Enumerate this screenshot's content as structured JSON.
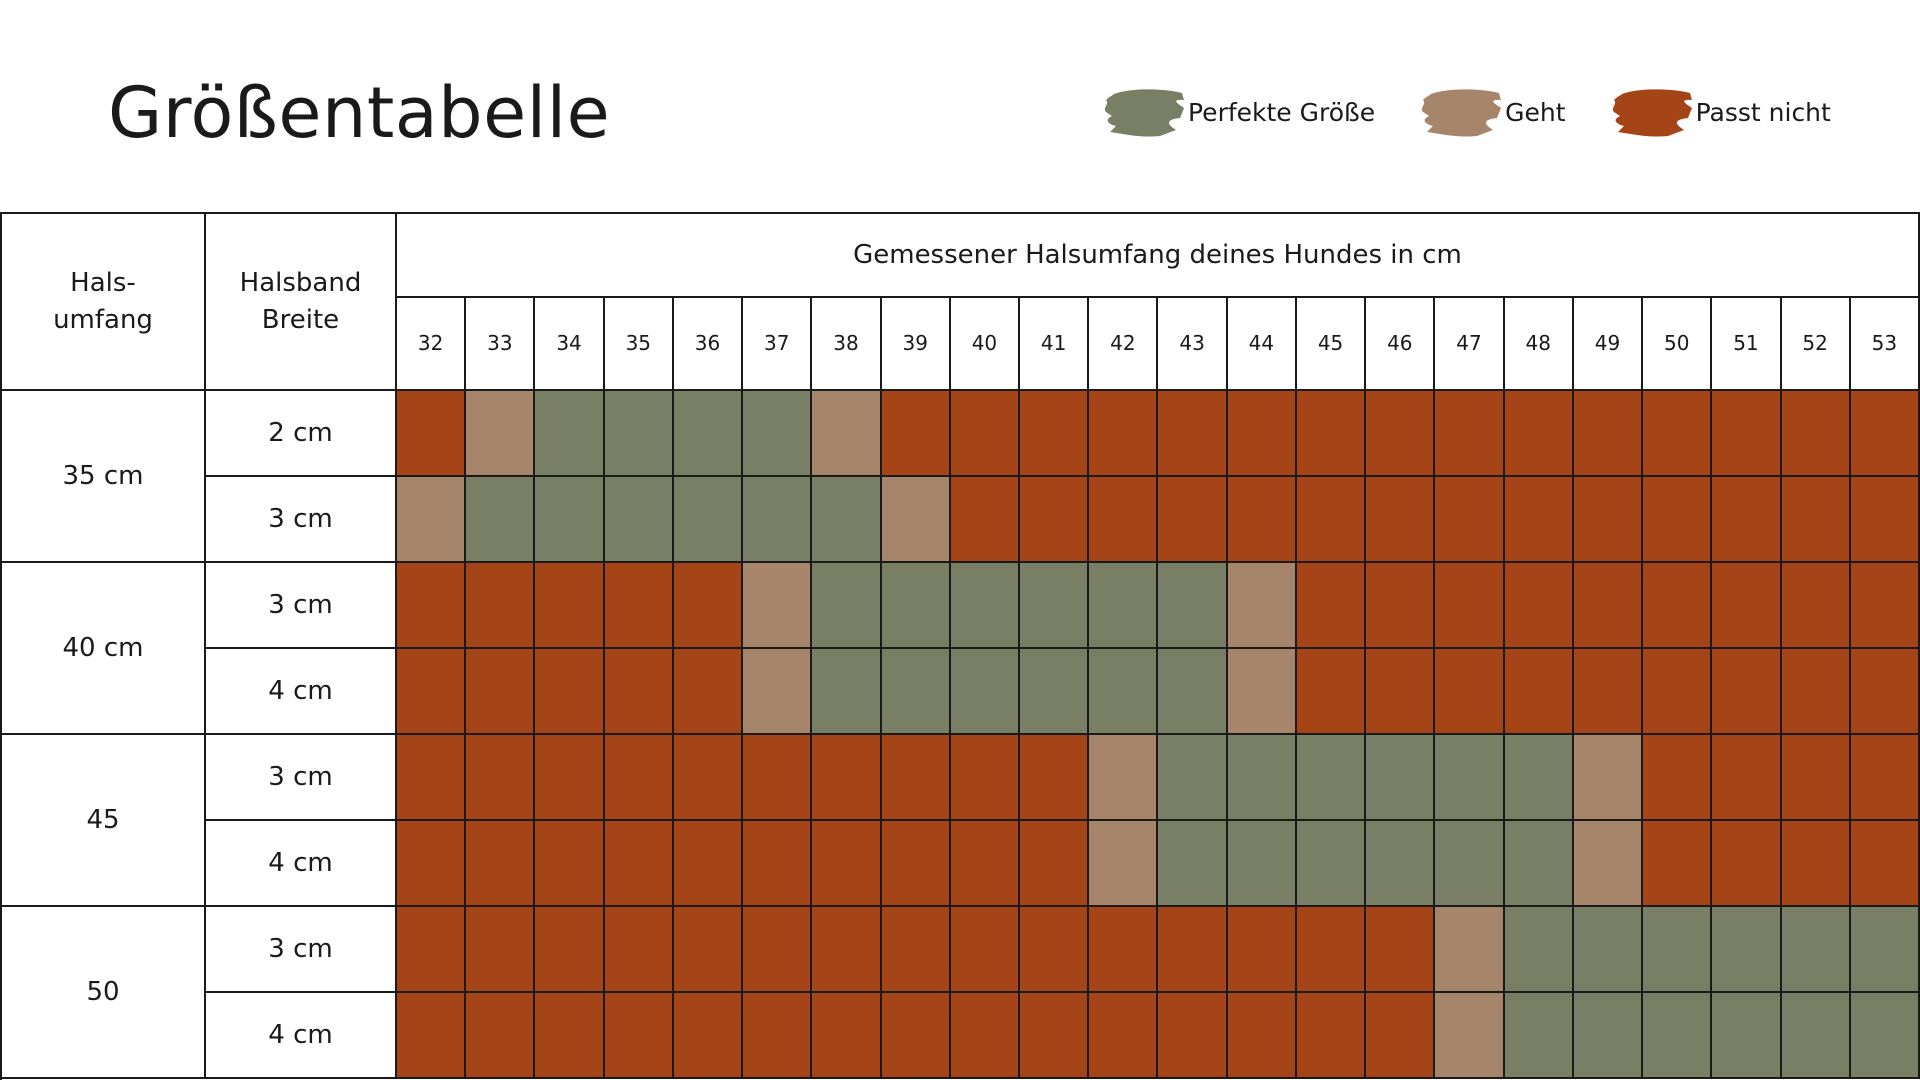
{
  "title": "Größentabelle",
  "legend": [
    {
      "key": "perfect",
      "label": "Perfekte Größe",
      "color": "#787f64"
    },
    {
      "key": "ok",
      "label": "Geht",
      "color": "#a6856a"
    },
    {
      "key": "no",
      "label": "Passt nicht",
      "color": "#a54417"
    }
  ],
  "table": {
    "col1_header": [
      "Hals-",
      "umfang"
    ],
    "col2_header": [
      "Halsband",
      "Breite"
    ],
    "span_header": "Gemessener Halsumfang deines Hundes in cm",
    "groups": [
      {
        "label": "35 cm",
        "widths": [
          "2 cm",
          "3 cm"
        ]
      },
      {
        "label": "40 cm",
        "widths": [
          "3 cm",
          "4 cm"
        ]
      },
      {
        "label": "45",
        "widths": [
          "3 cm",
          "4 cm"
        ]
      },
      {
        "label": "50",
        "widths": [
          "3 cm",
          "4 cm"
        ]
      }
    ]
  },
  "chart_data": {
    "type": "heatmap",
    "title": "Größentabelle",
    "xlabel": "Gemessener Halsumfang deines Hundes in cm",
    "x": [
      32,
      33,
      34,
      35,
      36,
      37,
      38,
      39,
      40,
      41,
      42,
      43,
      44,
      45,
      46,
      47,
      48,
      49,
      50,
      51,
      52,
      53
    ],
    "rows": [
      {
        "halsumfang": "35 cm",
        "breite": "2 cm",
        "values": [
          "no",
          "ok",
          "perfect",
          "perfect",
          "perfect",
          "perfect",
          "ok",
          "no",
          "no",
          "no",
          "no",
          "no",
          "no",
          "no",
          "no",
          "no",
          "no",
          "no",
          "no",
          "no",
          "no",
          "no"
        ]
      },
      {
        "halsumfang": "35 cm",
        "breite": "3 cm",
        "values": [
          "ok",
          "perfect",
          "perfect",
          "perfect",
          "perfect",
          "perfect",
          "perfect",
          "ok",
          "no",
          "no",
          "no",
          "no",
          "no",
          "no",
          "no",
          "no",
          "no",
          "no",
          "no",
          "no",
          "no",
          "no"
        ]
      },
      {
        "halsumfang": "40 cm",
        "breite": "3 cm",
        "values": [
          "no",
          "no",
          "no",
          "no",
          "no",
          "ok",
          "perfect",
          "perfect",
          "perfect",
          "perfect",
          "perfect",
          "perfect",
          "ok",
          "no",
          "no",
          "no",
          "no",
          "no",
          "no",
          "no",
          "no",
          "no"
        ]
      },
      {
        "halsumfang": "40 cm",
        "breite": "4 cm",
        "values": [
          "no",
          "no",
          "no",
          "no",
          "no",
          "ok",
          "perfect",
          "perfect",
          "perfect",
          "perfect",
          "perfect",
          "perfect",
          "ok",
          "no",
          "no",
          "no",
          "no",
          "no",
          "no",
          "no",
          "no",
          "no"
        ]
      },
      {
        "halsumfang": "45",
        "breite": "3 cm",
        "values": [
          "no",
          "no",
          "no",
          "no",
          "no",
          "no",
          "no",
          "no",
          "no",
          "no",
          "ok",
          "perfect",
          "perfect",
          "perfect",
          "perfect",
          "perfect",
          "perfect",
          "ok",
          "no",
          "no",
          "no",
          "no"
        ]
      },
      {
        "halsumfang": "45",
        "breite": "4 cm",
        "values": [
          "no",
          "no",
          "no",
          "no",
          "no",
          "no",
          "no",
          "no",
          "no",
          "no",
          "ok",
          "perfect",
          "perfect",
          "perfect",
          "perfect",
          "perfect",
          "perfect",
          "ok",
          "no",
          "no",
          "no",
          "no"
        ]
      },
      {
        "halsumfang": "50",
        "breite": "3 cm",
        "values": [
          "no",
          "no",
          "no",
          "no",
          "no",
          "no",
          "no",
          "no",
          "no",
          "no",
          "no",
          "no",
          "no",
          "no",
          "no",
          "ok",
          "perfect",
          "perfect",
          "perfect",
          "perfect",
          "perfect",
          "perfect"
        ]
      },
      {
        "halsumfang": "50",
        "breite": "4 cm",
        "values": [
          "no",
          "no",
          "no",
          "no",
          "no",
          "no",
          "no",
          "no",
          "no",
          "no",
          "no",
          "no",
          "no",
          "no",
          "no",
          "ok",
          "perfect",
          "perfect",
          "perfect",
          "perfect",
          "perfect",
          "perfect"
        ]
      }
    ],
    "legend_placement": "top-right"
  }
}
